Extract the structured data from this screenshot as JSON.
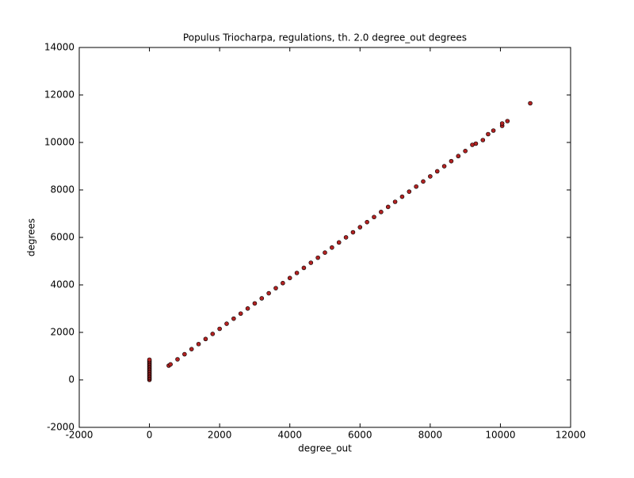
{
  "chart_data": {
    "type": "scatter",
    "title": "Populus Triocharpa, regulations, th. 2.0 degree_out degrees",
    "x_label": "degree_out",
    "y_label": "degrees",
    "x": [
      0,
      0,
      0,
      0,
      0,
      0,
      0,
      0,
      0,
      0,
      0,
      0,
      0,
      0,
      0,
      0,
      0,
      0,
      550,
      600,
      800,
      1000,
      1200,
      1400,
      1600,
      1800,
      2000,
      2200,
      2400,
      2600,
      2800,
      3000,
      3200,
      3400,
      3600,
      3800,
      4000,
      4200,
      4400,
      4600,
      4800,
      5000,
      5200,
      5400,
      5600,
      5800,
      6000,
      6200,
      6400,
      6600,
      6800,
      7000,
      7200,
      7400,
      7600,
      7800,
      8000,
      8200,
      8400,
      8600,
      8800,
      9000,
      9200,
      9300,
      9500,
      9650,
      9800,
      10050,
      10050,
      10200,
      10850
    ],
    "values": [
      0,
      50,
      100,
      150,
      200,
      250,
      300,
      350,
      400,
      450,
      500,
      550,
      600,
      650,
      700,
      750,
      800,
      850,
      600,
      652,
      866,
      1080,
      1294,
      1508,
      1722,
      1936,
      2150,
      2364,
      2578,
      2792,
      3006,
      3220,
      3434,
      3648,
      3862,
      4076,
      4290,
      4504,
      4718,
      4932,
      5146,
      5360,
      5574,
      5788,
      6002,
      6216,
      6430,
      6644,
      6858,
      7072,
      7286,
      7500,
      7714,
      7928,
      8142,
      8356,
      8570,
      8784,
      8998,
      9212,
      9426,
      9640,
      9900,
      9950,
      10100,
      10350,
      10500,
      10700,
      10800,
      10900,
      11650
    ],
    "color": "#b22222",
    "xlim": [
      -2000,
      12000
    ],
    "xticks": [
      -2000,
      0,
      2000,
      4000,
      6000,
      8000,
      10000,
      12000
    ],
    "ylim": [
      -2000,
      14000
    ],
    "yticks": [
      -2000,
      0,
      2000,
      4000,
      6000,
      8000,
      10000,
      12000,
      14000
    ]
  }
}
